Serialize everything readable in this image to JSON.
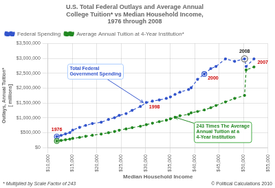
{
  "chart_data": {
    "type": "line",
    "title": "U.S. Total Federal Outlays and Average Annual\nCollege Tuition* vs Median Household Income,\n1976 through 2008",
    "xlabel": "Median Household Income",
    "ylabel": "Outlays, Annual Tuition*\n[ millions]",
    "notes": [
      "* Multiplied by Scale Factor of 243",
      "© Political Calculations 2010"
    ],
    "x": [
      11800,
      12686,
      13572,
      14461,
      15060,
      16461,
      17710,
      19074,
      20883,
      22388,
      23618,
      24569,
      25986,
      27225,
      28906,
      30126,
      31372,
      32777,
      34213,
      35048,
      36006,
      37005,
      38782,
      39300,
      40611,
      41994,
      43318,
      44389,
      46326,
      48201,
      50233,
      50557,
      52163
    ],
    "series": [
      {
        "name": "Federal Spending",
        "color": "#3355cc",
        "line_style": "dashed",
        "marker": "circle",
        "highlight_x": [
          11800,
          41994
        ],
        "values": [
          371800,
          409200,
          458700,
          504000,
          590900,
          678200,
          745800,
          808300,
          851800,
          946300,
          1004600,
          1082500,
          1143700,
          1252700,
          1381700,
          1515700,
          1560500,
          1601200,
          1652600,
          1701900,
          1788800,
          1863900,
          1952600,
          2010900,
          2292800,
          2472200,
          2655100,
          2728700,
          2982500,
          2900000,
          2983000,
          2728900,
          2982500
        ]
      },
      {
        "name": "Average Annual Tuition at 4-Year Institution*",
        "color": "#228822",
        "line_style": "dashed",
        "marker": "circle",
        "highlight_x": [
          11800
        ],
        "values": [
          218700,
          240000,
          263000,
          285000,
          310000,
          342000,
          378000,
          413000,
          453000,
          500000,
          540000,
          584000,
          628000,
          670000,
          718000,
          771000,
          820000,
          872000,
          920000,
          968000,
          1020000,
          1070000,
          1119000,
          1169000,
          1214000,
          1266000,
          1340000,
          1415000,
          1535000,
          1653000,
          1753000,
          2611000,
          2711000
        ]
      }
    ],
    "xlim": [
      10000,
      55000
    ],
    "xticks": [
      {
        "value": 10000,
        "label": "$10,000"
      },
      {
        "value": 15000,
        "label": "$15,000"
      },
      {
        "value": 20000,
        "label": "$20,000"
      },
      {
        "value": 25000,
        "label": "$25,000"
      },
      {
        "value": 30000,
        "label": "$30,000"
      },
      {
        "value": 35000,
        "label": "$35,000"
      },
      {
        "value": 40000,
        "label": "$40,000"
      },
      {
        "value": 45000,
        "label": "$45,000"
      },
      {
        "value": 50000,
        "label": "$50,000"
      },
      {
        "value": 55000,
        "label": "$55,000"
      }
    ],
    "ylim": [
      0,
      3500000
    ],
    "yticks": [
      {
        "value": 0,
        "label": "$0"
      },
      {
        "value": 500000,
        "label": "$500,000"
      },
      {
        "value": 1000000,
        "label": "$1,000,000"
      },
      {
        "value": 1500000,
        "label": "$1,500,000"
      },
      {
        "value": 2000000,
        "label": "$2,000,000"
      },
      {
        "value": 2500000,
        "label": "$2,500,000"
      },
      {
        "value": 3000000,
        "label": "$3,000,000"
      },
      {
        "value": 3500000,
        "label": "$3,500,000"
      }
    ],
    "grid": true,
    "legend": "upper left",
    "annotations": [
      {
        "text": "1976",
        "x": 11800,
        "y": 371800,
        "color": "#cc0000"
      },
      {
        "text": "1998",
        "x": 30126,
        "y": 1515700,
        "color": "#cc0000"
      },
      {
        "text": "2000",
        "x": 41994,
        "y": 2472200,
        "color": "#cc0000"
      },
      {
        "text": "2007",
        "x": 52163,
        "y": 2982500,
        "color": "#cc0000"
      },
      {
        "text": "2008",
        "x": 50233,
        "y": 2983000,
        "color": "#111111",
        "marker": "circle",
        "marker_color": "#888888"
      },
      {
        "text": "Total Federal\nGovernment Spending",
        "x": 29500,
        "y": 1515700,
        "color": "#3355cc",
        "arrow": true,
        "border_color": "#aaccff"
      },
      {
        "text": "243 Times The Average\nAnnual Tuition at a\n4-Year Institution",
        "x": 36000,
        "y": 1020000,
        "color": "#228822",
        "arrow": true,
        "border_color": "#44aa44"
      }
    ]
  }
}
